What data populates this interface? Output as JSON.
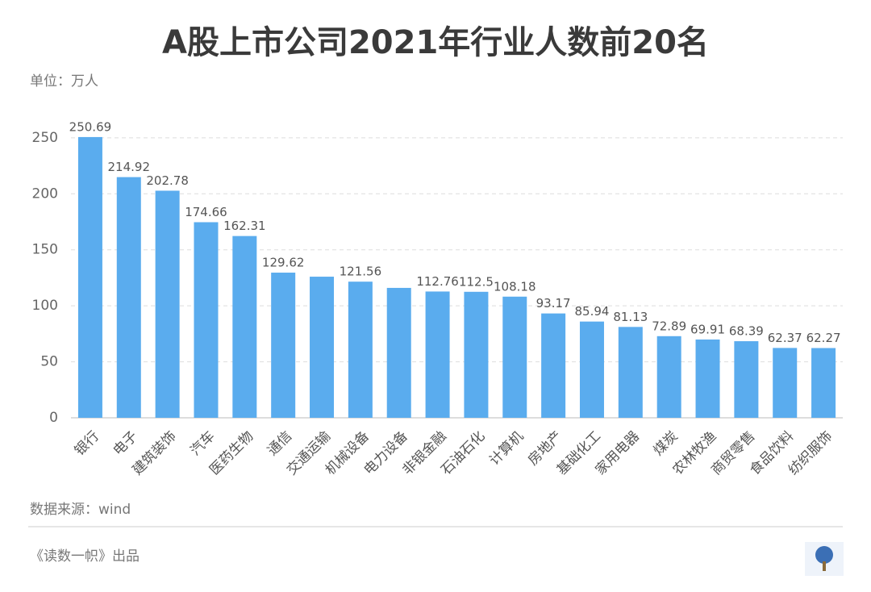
{
  "chart_data": {
    "type": "bar",
    "title": "A股上市公司2021年行业人数前20名",
    "unit_label": "单位：万人",
    "categories": [
      "银行",
      "电子",
      "建筑装饰",
      "汽车",
      "医药生物",
      "通信",
      "交通运输",
      "机械设备",
      "电力设备",
      "非银金融",
      "石油石化",
      "计算机",
      "房地产",
      "基础化工",
      "家用电器",
      "煤炭",
      "农林牧渔",
      "商贸零售",
      "食品饮料",
      "纺织服饰"
    ],
    "values": [
      250.69,
      214.92,
      202.78,
      174.66,
      162.31,
      129.62,
      126,
      121.56,
      116,
      112.76,
      112.5,
      108.18,
      93.17,
      85.94,
      81.13,
      72.89,
      69.91,
      68.39,
      62.37,
      62.27
    ],
    "value_labels": [
      "250.69",
      "214.92",
      "202.78",
      "174.66",
      "162.31",
      "129.62",
      null,
      "121.56",
      null,
      "112.76",
      "112.5",
      "108.18",
      "93.17",
      "85.94",
      "81.13",
      "72.89",
      "69.91",
      "68.39",
      "62.37",
      "62.27"
    ],
    "color": "#5aacee",
    "ylim": [
      0,
      260
    ],
    "yticks": [
      0,
      50,
      100,
      150,
      200,
      250
    ],
    "grid": true,
    "source": "数据来源：wind",
    "credit": "《读数一帜》出品"
  }
}
